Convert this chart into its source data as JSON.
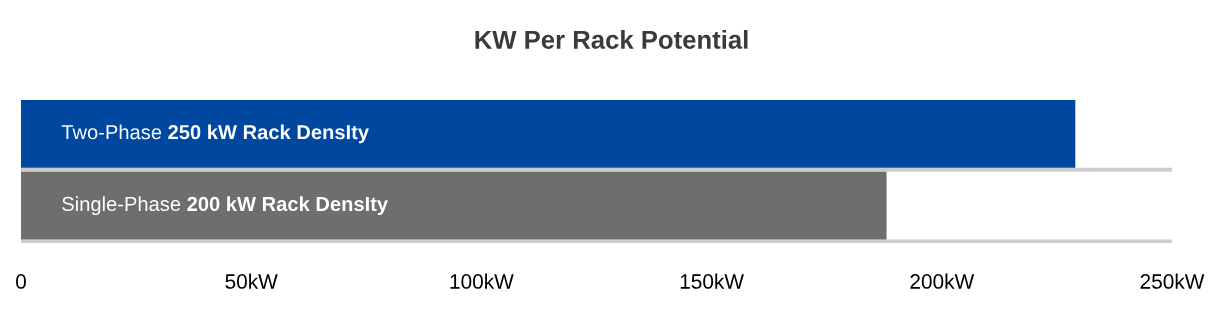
{
  "chart_data": {
    "type": "bar",
    "orientation": "horizontal",
    "title": "KW Per Rack Potential",
    "categories": [
      "Two-Phase 250 kW Rack DensIty",
      "Single-Phase 200 kW Rack DensIty"
    ],
    "values": [
      229,
      188
    ],
    "colors": [
      "#0047a0",
      "#6e6e6e"
    ],
    "xlim": [
      0,
      250
    ],
    "xticks": [
      0,
      {
        "value": 50,
        "label": "50kW"
      },
      {
        "value": 100,
        "label": "100kW"
      },
      {
        "value": 150,
        "label": "150kW"
      },
      {
        "value": 200,
        "label": "200kW"
      },
      {
        "value": 250,
        "label": "250kW"
      }
    ],
    "grid": "y"
  }
}
